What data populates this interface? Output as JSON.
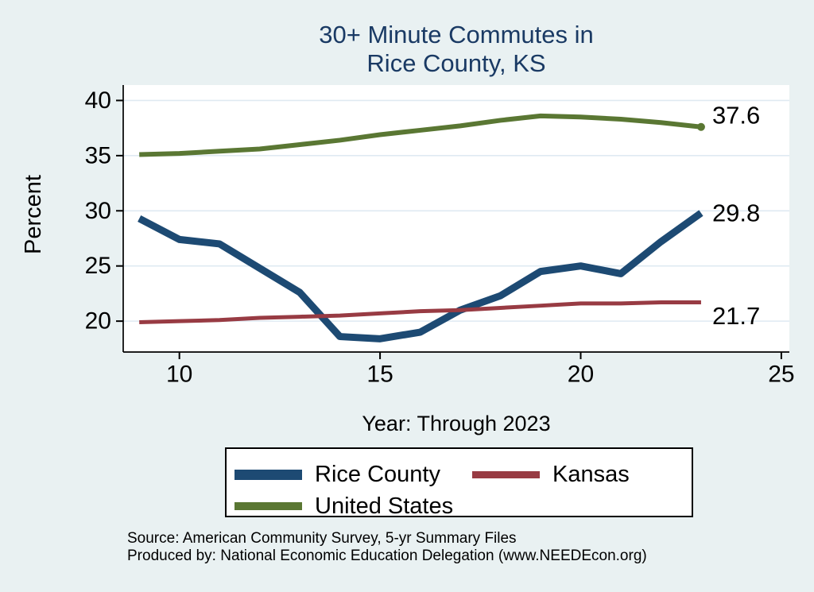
{
  "page": {
    "background_color": "#e9f1f2",
    "title_color": "#1a3a64"
  },
  "title": {
    "line1": "30+ Minute Commutes in",
    "line2": "Rice County, KS"
  },
  "chart_data": {
    "type": "line",
    "title": "30+ Minute Commutes in Rice County, KS",
    "xlabel": "Year: Through 2023",
    "ylabel": "Percent",
    "x": [
      9,
      10,
      11,
      12,
      13,
      14,
      15,
      16,
      17,
      18,
      19,
      20,
      21,
      22,
      23
    ],
    "xticks": [
      10,
      15,
      20,
      25
    ],
    "yticks": [
      20,
      25,
      30,
      35,
      40
    ],
    "xlim": [
      8.6,
      25.2
    ],
    "ylim": [
      17.2,
      41.4
    ],
    "grid": "horizontal gridlines at yticks",
    "gridline_color": "#dfeaf2",
    "plot_background": "#ffffff",
    "legend_position": "bottom",
    "series": [
      {
        "name": "Rice County",
        "color": "#1d4a73",
        "stroke_width": 9,
        "end_label": "29.8",
        "end_label_dy": 0,
        "end_dot": false,
        "values": [
          29.3,
          27.4,
          27.0,
          24.8,
          22.6,
          18.6,
          18.4,
          19.0,
          21.0,
          22.3,
          24.5,
          25.0,
          24.3,
          27.2,
          29.8
        ]
      },
      {
        "name": "Kansas",
        "color": "#983b43",
        "stroke_width": 5,
        "end_label": "21.7",
        "end_label_dy": 17,
        "end_dot": false,
        "values": [
          19.9,
          20.0,
          20.1,
          20.3,
          20.4,
          20.5,
          20.7,
          20.9,
          21.0,
          21.2,
          21.4,
          21.6,
          21.6,
          21.7,
          21.7
        ]
      },
      {
        "name": "United States",
        "color": "#5a7733",
        "stroke_width": 6,
        "end_label": "37.6",
        "end_label_dy": -15,
        "end_dot": true,
        "values": [
          35.1,
          35.2,
          35.4,
          35.6,
          36.0,
          36.4,
          36.9,
          37.3,
          37.7,
          38.2,
          38.6,
          38.5,
          38.3,
          38.0,
          37.6
        ]
      }
    ]
  },
  "footer": {
    "source": "Source: American Community Survey, 5-yr Summary Files",
    "produced_by": "Produced by: National Economic Education Delegation (www.NEEDEcon.org)"
  }
}
